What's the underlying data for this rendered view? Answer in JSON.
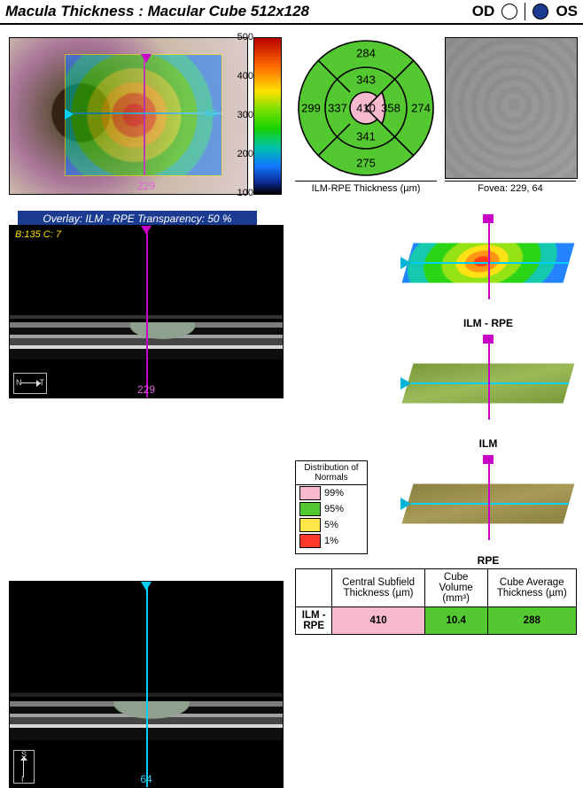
{
  "header": {
    "title": "Macula Thickness : Macular Cube 512x128",
    "eyes": {
      "od": {
        "label": "OD",
        "selected": false,
        "fill": "#ffffff"
      },
      "os": {
        "label": "OS",
        "selected": true,
        "fill": "#1a3b8f"
      }
    }
  },
  "colorbar": {
    "ticks": [
      "500",
      "400",
      "300",
      "200",
      "100"
    ],
    "zero": "0",
    "unit": "µm"
  },
  "fundus": {
    "overlay_caption": "Overlay: ILM - RPE  Transparency: 50 %",
    "x_marker": "229",
    "y_marker": "64",
    "marker_colors": {
      "vertical": "#c800c8",
      "horizontal": "#00d0ff"
    }
  },
  "etdrs": {
    "caption": "ILM-RPE Thickness (µm)",
    "center": {
      "value": "410",
      "color": "#f7b9cc"
    },
    "inner": {
      "sup": "343",
      "nas": "337",
      "inf": "341",
      "tmp": "358",
      "tmp_color": "#f7b9cc",
      "color": "#54c830"
    },
    "outer": {
      "sup": "284",
      "nas": "299",
      "inf": "275",
      "tmp": "274",
      "color": "#54c830"
    }
  },
  "fovea": {
    "caption_prefix": "Fovea:",
    "x": "229",
    "y": "64"
  },
  "bscan1": {
    "info": "B:135 C:  7",
    "x": "229",
    "left": "N",
    "right": "T"
  },
  "bscan2": {
    "x": "64",
    "top": "S",
    "bottom": "I"
  },
  "surfaces": {
    "ilmrpe": {
      "label": "ILM - RPE"
    },
    "ilm": {
      "label": "ILM"
    },
    "rpe": {
      "label": "RPE"
    }
  },
  "distribution": {
    "title": "Distribution of Normals",
    "rows": [
      {
        "label": "99%",
        "color": "#f7b9cc"
      },
      {
        "label": "95%",
        "color": "#54c830"
      },
      {
        "label": "5%",
        "color": "#ffe74a"
      },
      {
        "label": "1%",
        "color": "#ff3a2a"
      }
    ]
  },
  "summary": {
    "headers": [
      "",
      "Central Subfield Thickness (µm)",
      "Cube Volume (mm³)",
      "Cube Average Thickness (µm)"
    ],
    "row_label": "ILM - RPE",
    "values": [
      {
        "text": "410",
        "bg": "#f7b9cc"
      },
      {
        "text": "10.4",
        "bg": "#54c830"
      },
      {
        "text": "288",
        "bg": "#54c830"
      }
    ]
  }
}
